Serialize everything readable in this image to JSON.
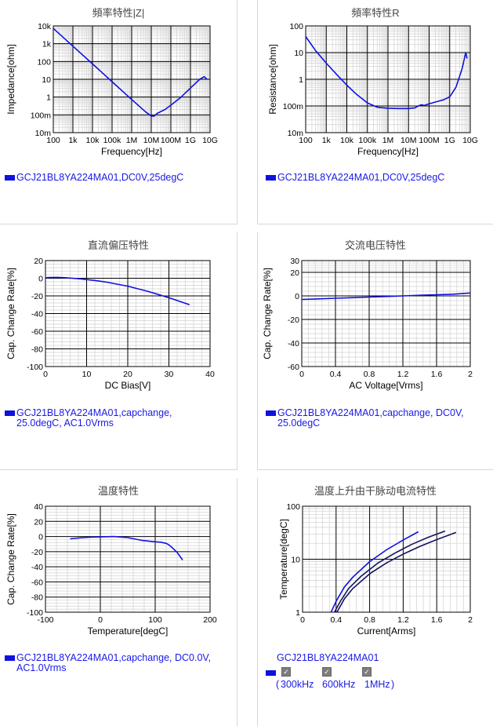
{
  "colors": {
    "series": "#1010e0",
    "series_dark": "#14145a",
    "legend_text": "#1a1ae6"
  },
  "panels": [
    {
      "title": "頻率特性|Z|",
      "legend": [
        "GCJ21BL8YA224MA01,DC0V,25degC"
      ]
    },
    {
      "title": "頻率特性R",
      "legend": [
        "GCJ21BL8YA224MA01,DC0V,25degC"
      ]
    },
    {
      "title": "直流偏压特性",
      "legend": [
        "GCJ21BL8YA224MA01,capchange,",
        "25.0degC, AC1.0Vrms"
      ]
    },
    {
      "title": "交流电压特性",
      "legend": [
        "GCJ21BL8YA224MA01,capchange, DC0V,",
        "25.0degC"
      ]
    },
    {
      "title": "温度特性",
      "legend": [
        "GCJ21BL8YA224MA01,capchange, DC0.0V,",
        "AC1.0Vrms"
      ]
    },
    {
      "title": "温度上升由干脉动电流特性",
      "legend": [
        "GCJ21BL8YA224MA01"
      ],
      "checkboxes": [
        "300kHz",
        "600kHz",
        "1MHz"
      ],
      "checkbox_prefix": "(",
      "checkbox_suffix": ")"
    }
  ],
  "chart_data": [
    {
      "type": "line",
      "title": "頻率特性|Z|",
      "xlabel": "Frequency[Hz]",
      "ylabel": "Impedance[ohm]",
      "xscale": "log",
      "yscale": "log",
      "xlim": [
        100,
        10000000000
      ],
      "ylim": [
        0.01,
        10000
      ],
      "xticks": [
        100,
        1000,
        10000,
        100000,
        1000000,
        10000000,
        100000000,
        1000000000,
        10000000000
      ],
      "xticklabels": [
        "100",
        "1k",
        "10k",
        "100k",
        "1M",
        "10M",
        "100M",
        "1G",
        "10G"
      ],
      "yticks": [
        0.01,
        0.1,
        1,
        10,
        100,
        1000,
        10000
      ],
      "yticklabels": [
        "10m",
        "100m",
        "1",
        "10",
        "100",
        "1k",
        "10k"
      ],
      "grid": true,
      "series": [
        {
          "name": "GCJ21BL8YA224MA01,DC0V,25degC",
          "x": [
            100,
            1000,
            10000,
            100000,
            1000000,
            5000000,
            10000000,
            14000000,
            20000000,
            50000000,
            100000000,
            300000000,
            1000000000,
            3000000000,
            5000000000,
            7000000000
          ],
          "y": [
            7200,
            730,
            73,
            7.3,
            0.73,
            0.15,
            0.085,
            0.085,
            0.12,
            0.2,
            0.35,
            0.9,
            3.2,
            10,
            14,
            10
          ]
        }
      ]
    },
    {
      "type": "line",
      "title": "頻率特性R",
      "xlabel": "Frequency[Hz]",
      "ylabel": "Resistance[ohm]",
      "xscale": "log",
      "yscale": "log",
      "xlim": [
        100,
        10000000000
      ],
      "ylim": [
        0.01,
        100
      ],
      "xticks": [
        100,
        1000,
        10000,
        100000,
        1000000,
        10000000,
        100000000,
        1000000000,
        10000000000
      ],
      "xticklabels": [
        "100",
        "1k",
        "10k",
        "100k",
        "1M",
        "10M",
        "100M",
        "1G",
        "10G"
      ],
      "yticks": [
        0.01,
        0.1,
        1,
        10,
        100
      ],
      "yticklabels": [
        "10m",
        "100m",
        "1",
        "10",
        "100"
      ],
      "grid": true,
      "series": [
        {
          "name": "GCJ21BL8YA224MA01,DC0V,25degC",
          "x": [
            100,
            300,
            1000,
            3000,
            10000,
            30000,
            100000,
            300000,
            1000000,
            3000000,
            10000000,
            20000000,
            30000000,
            40000000,
            60000000,
            100000000,
            200000000,
            500000000,
            1000000000,
            2000000000,
            4000000000,
            6000000000,
            7000000000
          ],
          "y": [
            40,
            12,
            4,
            1.6,
            0.6,
            0.27,
            0.13,
            0.09,
            0.082,
            0.08,
            0.08,
            0.085,
            0.1,
            0.11,
            0.105,
            0.12,
            0.14,
            0.17,
            0.22,
            0.5,
            2.5,
            10,
            6
          ]
        }
      ]
    },
    {
      "type": "line",
      "title": "直流偏压特性",
      "xlabel": "DC Bias[V]",
      "ylabel": "Cap. Change Rate[%]",
      "xlim": [
        0,
        40
      ],
      "ylim": [
        -100,
        20
      ],
      "xticks": [
        0,
        10,
        20,
        30,
        40
      ],
      "yticks": [
        20,
        0,
        -20,
        -40,
        -60,
        -80,
        -100
      ],
      "grid": true,
      "series": [
        {
          "name": "GCJ21BL8YA224MA01,capchange,25.0degC, AC1.0Vrms",
          "x": [
            0,
            1,
            3,
            5,
            8,
            12,
            15,
            20,
            25,
            30,
            35
          ],
          "y": [
            0.5,
            0.8,
            1,
            0.5,
            -0.5,
            -2.5,
            -4.5,
            -9,
            -15,
            -22,
            -30
          ]
        }
      ]
    },
    {
      "type": "line",
      "title": "交流电压特性",
      "xlabel": "AC Voltage[Vrms]",
      "ylabel": "Cap. Change Rate[%]",
      "xlim": [
        0,
        2
      ],
      "ylim": [
        -60,
        30
      ],
      "xticks": [
        0,
        0.4,
        0.8,
        1.2,
        1.6,
        2
      ],
      "yticks": [
        30,
        20,
        0,
        -20,
        -40,
        -60
      ],
      "grid": true,
      "series": [
        {
          "name": "GCJ21BL8YA224MA01,capchange, DC0V,25.0degC",
          "x": [
            0,
            0.2,
            0.4,
            0.6,
            0.8,
            1.0,
            1.2,
            1.4,
            1.6,
            1.8,
            2.0
          ],
          "y": [
            -3,
            -2.5,
            -2,
            -1.5,
            -1,
            -0.5,
            0,
            0.5,
            1,
            1.5,
            2.5
          ]
        }
      ]
    },
    {
      "type": "line",
      "title": "温度特性",
      "xlabel": "Temperature[degC]",
      "ylabel": "Cap. Change Rate[%]",
      "xlim": [
        -100,
        200
      ],
      "ylim": [
        -100,
        40
      ],
      "xticks": [
        -100,
        0,
        100,
        200
      ],
      "yticks": [
        40,
        20,
        0,
        -20,
        -40,
        -60,
        -80,
        -100
      ],
      "grid": true,
      "series": [
        {
          "name": "GCJ21BL8YA224MA01,capchange, DC0.0V,AC1.0Vrms",
          "x": [
            -55,
            -40,
            -20,
            0,
            25,
            50,
            75,
            100,
            110,
            120,
            125,
            130,
            140,
            150
          ],
          "y": [
            -3,
            -2,
            -1,
            -0.5,
            0,
            -1.5,
            -5,
            -7,
            -7.5,
            -9,
            -11,
            -14,
            -21,
            -31
          ]
        }
      ]
    },
    {
      "type": "line",
      "title": "温度上升由干脉动电流特性",
      "xlabel": "Current[Arms]",
      "ylabel": "Temperature[degC]",
      "yscale": "log",
      "xlim": [
        0,
        2
      ],
      "ylim": [
        1,
        100
      ],
      "xticks": [
        0,
        0.4,
        0.8,
        1.2,
        1.6,
        2
      ],
      "yticks": [
        1,
        10,
        100
      ],
      "grid": true,
      "series": [
        {
          "name": "300kHz",
          "color": "#1010e0",
          "x": [
            0.34,
            0.4,
            0.5,
            0.6,
            0.8,
            1.0,
            1.2,
            1.38
          ],
          "y": [
            1,
            1.6,
            3,
            4.6,
            9,
            15,
            23,
            33
          ]
        },
        {
          "name": "600kHz",
          "color": "#14145a",
          "x": [
            0.38,
            0.45,
            0.55,
            0.7,
            0.9,
            1.1,
            1.3,
            1.5,
            1.7
          ],
          "y": [
            1,
            1.6,
            2.8,
            4.8,
            8.5,
            13,
            19,
            26,
            34
          ]
        },
        {
          "name": "1MHz",
          "color": "#14145a",
          "x": [
            0.41,
            0.5,
            0.6,
            0.8,
            1.0,
            1.2,
            1.4,
            1.6,
            1.83
          ],
          "y": [
            1,
            1.8,
            2.8,
            5.3,
            8.5,
            12.5,
            17.5,
            23.5,
            32
          ]
        }
      ]
    }
  ]
}
